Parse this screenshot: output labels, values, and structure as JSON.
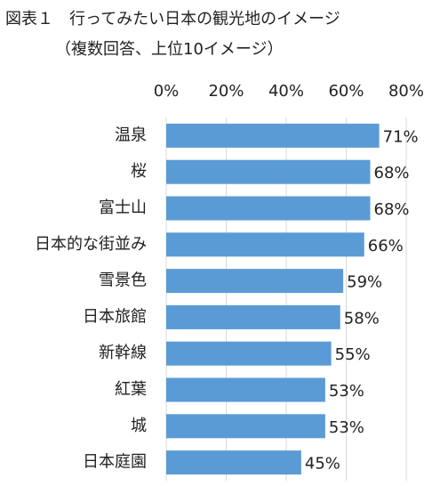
{
  "chart_data": {
    "type": "bar",
    "orientation": "horizontal",
    "title": "図表１　行ってみたい日本の観光地のイメージ",
    "subtitle": "（複数回答、上位10イメージ）",
    "categories": [
      "温泉",
      "桜",
      "富士山",
      "日本的な街並み",
      "雪景色",
      "日本旅館",
      "新幹線",
      "紅葉",
      "城",
      "日本庭園"
    ],
    "values": [
      71,
      68,
      68,
      66,
      59,
      58,
      55,
      53,
      53,
      45
    ],
    "value_labels": [
      "71%",
      "68%",
      "68%",
      "66%",
      "59%",
      "58%",
      "55%",
      "53%",
      "53%",
      "45%"
    ],
    "color": "#5b9bd5",
    "xlim": [
      0,
      80
    ],
    "xticks": [
      {
        "value": 0,
        "label": "0%"
      },
      {
        "value": 20,
        "label": "20%"
      },
      {
        "value": 40,
        "label": "40%"
      },
      {
        "value": 60,
        "label": "60%"
      },
      {
        "value": 80,
        "label": "80%"
      }
    ],
    "grid": true
  }
}
